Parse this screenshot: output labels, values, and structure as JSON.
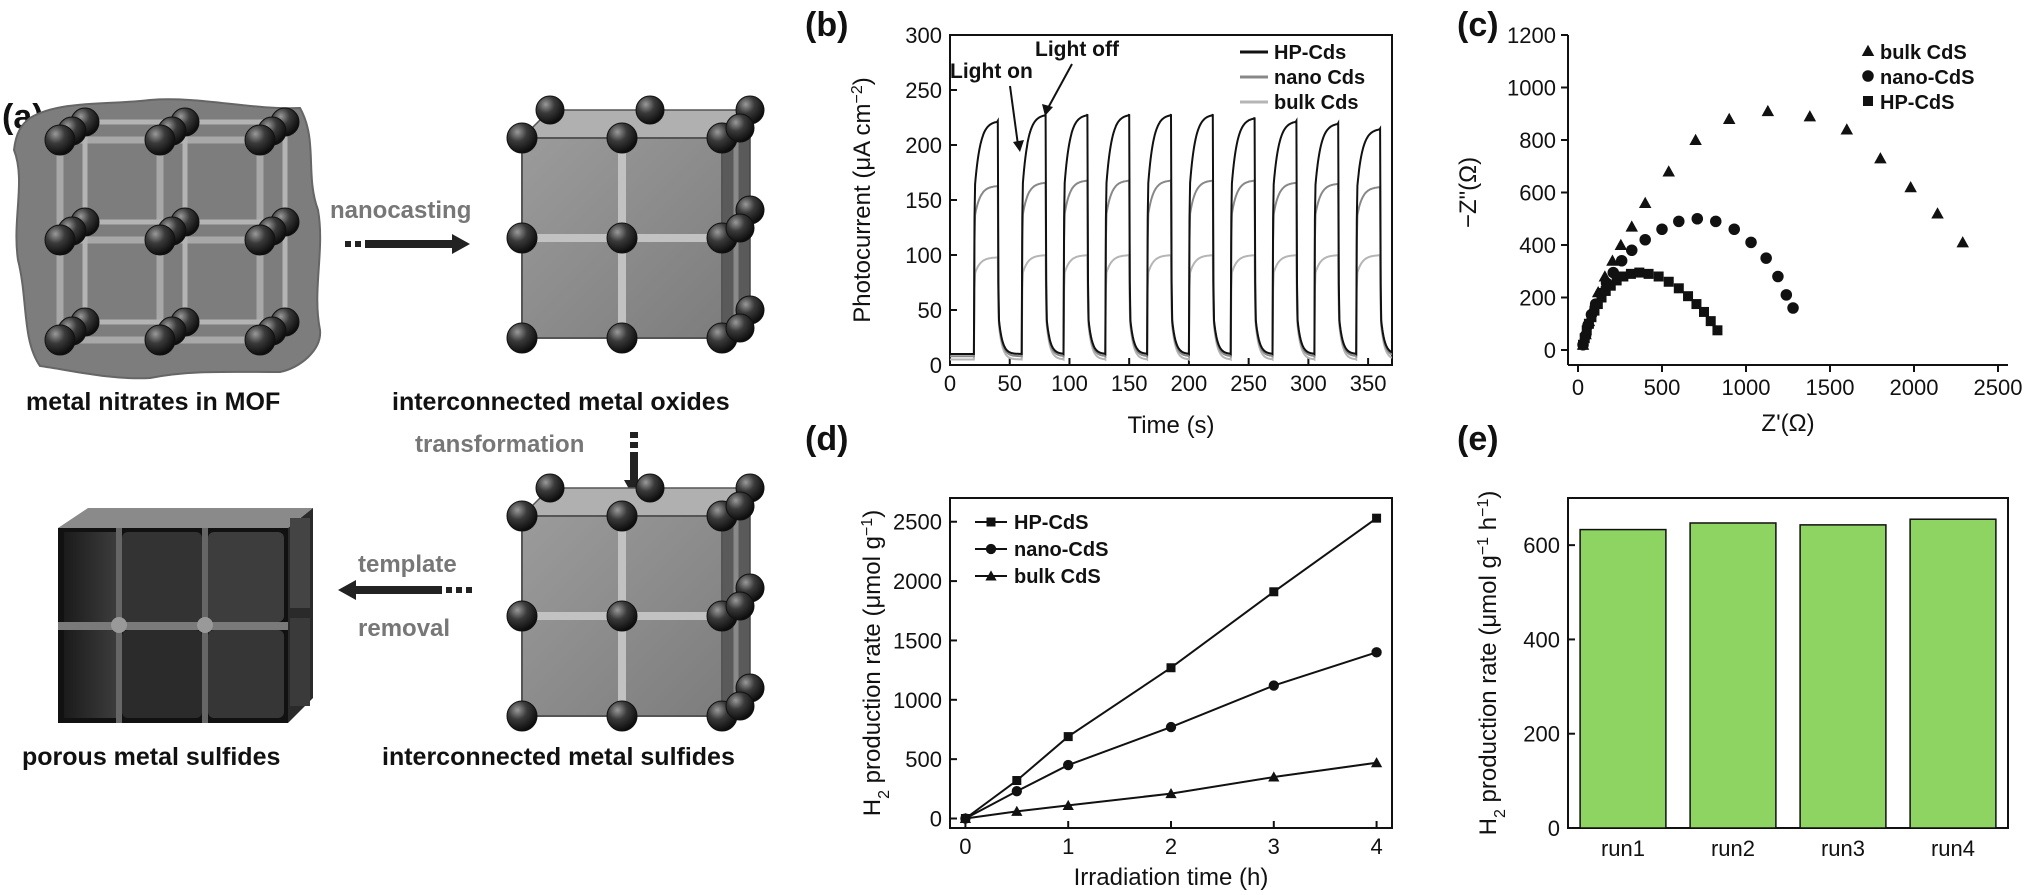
{
  "panel_labels": {
    "a": "(a)",
    "b": "(b)",
    "c": "(c)",
    "d": "(d)",
    "e": "(e)"
  },
  "schematic": {
    "captions": {
      "mof": "metal nitrates in MOF",
      "oxides": "interconnected metal oxides",
      "sulfides": "interconnected metal sulfides",
      "porous": "porous metal sulfides"
    },
    "arrows": {
      "nanocasting": "nanocasting",
      "transformation": "transformation",
      "template": "template",
      "removal": "removal"
    }
  },
  "chart_data": [
    {
      "id": "b",
      "type": "line",
      "xlabel": "Time (s)",
      "ylabel": "Photocurrent (μA cm⁻²)",
      "xlim": [
        0,
        370
      ],
      "ylim": [
        0,
        300
      ],
      "xticks": [
        0,
        50,
        100,
        150,
        200,
        250,
        300,
        350
      ],
      "yticks": [
        0,
        50,
        100,
        150,
        200,
        250,
        300
      ],
      "legend_position": "top-right",
      "light_on_times": [
        20,
        60,
        95,
        130,
        165,
        200,
        235,
        270,
        305,
        340
      ],
      "light_on_duration": 20,
      "annotations": [
        "Light on",
        "Light off"
      ],
      "series": [
        {
          "name": "HP-Cds",
          "color": "#111111",
          "off": 10,
          "rise": 150,
          "on_values": [
            222,
            228,
            228,
            228,
            228,
            228,
            225,
            222,
            220,
            215
          ]
        },
        {
          "name": "nano Cds",
          "color": "#888888",
          "off": 8,
          "rise": 130,
          "on_values": [
            163,
            166,
            168,
            168,
            168,
            168,
            168,
            166,
            165,
            162
          ]
        },
        {
          "name": "bulk Cds",
          "color": "#b5b5b5",
          "off": 5,
          "rise": 80,
          "on_values": [
            98,
            100,
            100,
            100,
            100,
            100,
            100,
            100,
            100,
            100
          ]
        }
      ]
    },
    {
      "id": "c",
      "type": "scatter",
      "xlabel": "Z'(Ω)",
      "ylabel": "−Z\"(Ω)",
      "xlim": [
        0,
        2500
      ],
      "ylim": [
        0,
        1200
      ],
      "xticks": [
        0,
        500,
        1000,
        1500,
        2000,
        2500
      ],
      "yticks": [
        0,
        200,
        400,
        600,
        800,
        1000,
        1200
      ],
      "legend_position": "top-right",
      "series": [
        {
          "name": "bulk CdS",
          "marker": "triangle",
          "x": [
            30,
            45,
            65,
            90,
            120,
            160,
            205,
            255,
            320,
            400,
            540,
            700,
            900,
            1130,
            1380,
            1600,
            1800,
            1980,
            2140,
            2290
          ],
          "y": [
            20,
            60,
            110,
            160,
            220,
            280,
            340,
            400,
            470,
            560,
            680,
            800,
            880,
            910,
            890,
            840,
            730,
            620,
            520,
            410
          ]
        },
        {
          "name": "nano-CdS",
          "marker": "circle",
          "x": [
            30,
            45,
            60,
            80,
            105,
            135,
            170,
            210,
            260,
            320,
            400,
            500,
            600,
            710,
            820,
            930,
            1030,
            1120,
            1190,
            1240,
            1280
          ],
          "y": [
            20,
            55,
            95,
            135,
            175,
            215,
            255,
            295,
            340,
            380,
            420,
            460,
            490,
            500,
            490,
            460,
            410,
            350,
            280,
            210,
            160
          ]
        },
        {
          "name": "HP-CdS",
          "marker": "square",
          "x": [
            30,
            40,
            52,
            65,
            80,
            98,
            118,
            140,
            165,
            195,
            230,
            270,
            315,
            365,
            420,
            480,
            540,
            600,
            655,
            705,
            750,
            790,
            830
          ],
          "y": [
            20,
            45,
            75,
            100,
            125,
            150,
            175,
            200,
            225,
            245,
            265,
            280,
            290,
            295,
            290,
            280,
            260,
            235,
            205,
            175,
            145,
            110,
            75
          ]
        }
      ]
    },
    {
      "id": "d",
      "type": "line",
      "xlabel": "Irradiation time (h)",
      "ylabel": "H₂ production rate (μmol g⁻¹)",
      "xlim": [
        -0.15,
        4.15
      ],
      "ylim": [
        -80,
        2700
      ],
      "xticks": [
        0,
        1,
        2,
        3,
        4
      ],
      "yticks": [
        0,
        500,
        1000,
        1500,
        2000,
        2500
      ],
      "legend_position": "top-left",
      "series": [
        {
          "name": "HP-CdS",
          "marker": "square",
          "x": [
            0,
            0.5,
            1,
            2,
            3,
            4
          ],
          "y": [
            0,
            320,
            690,
            1270,
            1910,
            2530
          ]
        },
        {
          "name": "nano-CdS",
          "marker": "circle",
          "x": [
            0,
            0.5,
            1,
            2,
            3,
            4
          ],
          "y": [
            0,
            230,
            450,
            770,
            1120,
            1400
          ]
        },
        {
          "name": "bulk CdS",
          "marker": "triangle",
          "x": [
            0,
            0.5,
            1,
            2,
            3,
            4
          ],
          "y": [
            0,
            60,
            110,
            210,
            350,
            470
          ]
        }
      ]
    },
    {
      "id": "e",
      "type": "bar",
      "ylabel": "H₂ production rate (μmol g⁻¹ h⁻¹)",
      "categories": [
        "run1",
        "run2",
        "run3",
        "run4"
      ],
      "values": [
        633,
        647,
        643,
        655
      ],
      "ylim": [
        0,
        700
      ],
      "yticks": [
        0,
        200,
        400,
        600
      ],
      "bar_color": "#8ed462"
    }
  ]
}
